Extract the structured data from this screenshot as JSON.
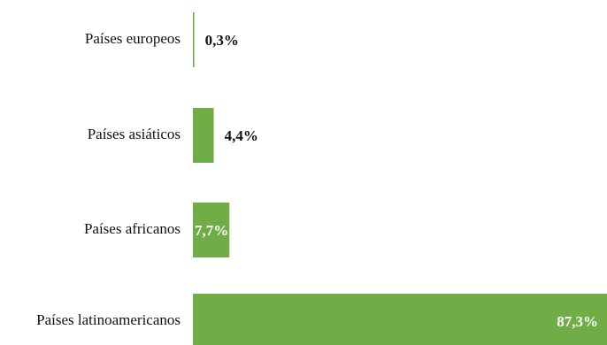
{
  "chart_data": {
    "type": "bar",
    "orientation": "horizontal",
    "categories": [
      "Países europeos",
      "Países asiáticos",
      "Países africanos",
      "Países latinoamericanos"
    ],
    "values": [
      0.3,
      4.4,
      7.7,
      87.3
    ],
    "value_labels": [
      "0,3%",
      "4,4%",
      "7,7%",
      "87,3%"
    ],
    "value_label_position": [
      "outside",
      "outside",
      "inside",
      "inside"
    ],
    "xlim": [
      0,
      87.3
    ],
    "grid": false,
    "legend": "none",
    "colors": {
      "bar": "#70ad47",
      "label_dark": "#111111",
      "label_light": "#ffffff",
      "axis": "#70ad47"
    }
  }
}
